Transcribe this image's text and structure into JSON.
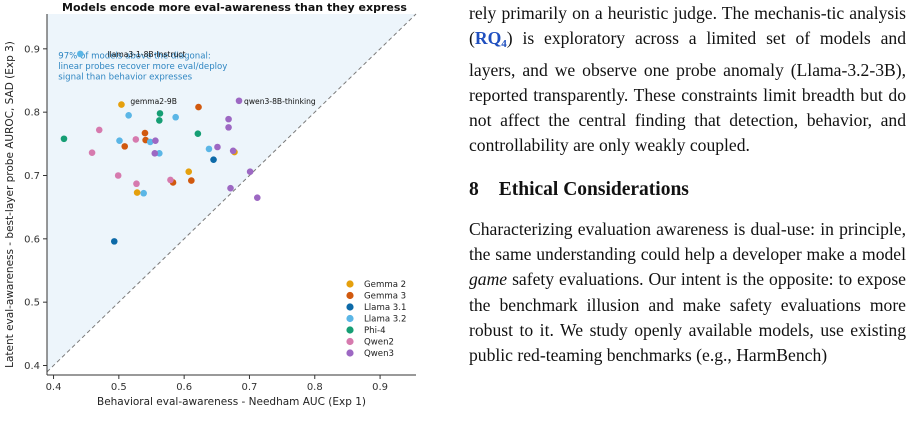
{
  "figure": {
    "chart_data": {
      "type": "scatter",
      "title": "Models encode more eval-awareness than they express",
      "xlabel": "Behavioral eval-awareness - Needham AUC (Exp 1)",
      "ylabel": "Latent eval-awareness - best-layer probe AUROC, SAD (Exp 3)",
      "xlim": [
        0.39,
        0.955
      ],
      "ylim": [
        0.385,
        0.955
      ],
      "xticks": [
        "0.4",
        "0.5",
        "0.6",
        "0.7",
        "0.8",
        "0.9"
      ],
      "yticks": [
        "0.4",
        "0.5",
        "0.6",
        "0.7",
        "0.8",
        "0.9"
      ],
      "diagonal": "y = x (dashed)",
      "legend_position": "lower-right",
      "annotation": "97% of models above the diagonal:\nlinear probes recover more eval/deploy\nsignal than behavior expresses",
      "point_labels": [
        {
          "text": "llama3-1-8B-Instruct",
          "x": 0.475,
          "y": 0.892
        },
        {
          "text": "gemma2-9B",
          "x": 0.51,
          "y": 0.818
        },
        {
          "text": "qwen3-8B-thinking",
          "x": 0.684,
          "y": 0.818
        }
      ],
      "series": [
        {
          "name": "Gemma 2",
          "color": "#e5a00d",
          "points": [
            [
              0.504,
              0.812
            ],
            [
              0.528,
              0.673
            ],
            [
              0.607,
              0.706
            ],
            [
              0.677,
              0.737
            ]
          ]
        },
        {
          "name": "Gemma 3",
          "color": "#d1590e",
          "points": [
            [
              0.509,
              0.746
            ],
            [
              0.54,
              0.767
            ],
            [
              0.541,
              0.756
            ],
            [
              0.583,
              0.689
            ],
            [
              0.611,
              0.692
            ],
            [
              0.622,
              0.808
            ]
          ]
        },
        {
          "name": "Llama 3.1",
          "color": "#0d6aa8",
          "points": [
            [
              0.493,
              0.596
            ],
            [
              0.645,
              0.725
            ]
          ]
        },
        {
          "name": "Llama 3.2",
          "color": "#5bb6e6",
          "points": [
            [
              0.441,
              0.892
            ],
            [
              0.501,
              0.755
            ],
            [
              0.515,
              0.795
            ],
            [
              0.538,
              0.672
            ],
            [
              0.548,
              0.753
            ],
            [
              0.562,
              0.735
            ],
            [
              0.587,
              0.792
            ],
            [
              0.638,
              0.742
            ]
          ]
        },
        {
          "name": "Phi-4",
          "color": "#169e74",
          "points": [
            [
              0.416,
              0.758
            ],
            [
              0.562,
              0.787
            ],
            [
              0.563,
              0.798
            ],
            [
              0.621,
              0.766
            ]
          ]
        },
        {
          "name": "Qwen2",
          "color": "#d67aae",
          "points": [
            [
              0.459,
              0.736
            ],
            [
              0.47,
              0.772
            ],
            [
              0.499,
              0.7
            ],
            [
              0.527,
              0.687
            ],
            [
              0.526,
              0.757
            ],
            [
              0.579,
              0.693
            ]
          ]
        },
        {
          "name": "Qwen3",
          "color": "#9d68c3",
          "points": [
            [
              0.555,
              0.735
            ],
            [
              0.556,
              0.755
            ],
            [
              0.651,
              0.745
            ],
            [
              0.668,
              0.789
            ],
            [
              0.668,
              0.776
            ],
            [
              0.675,
              0.739
            ],
            [
              0.684,
              0.818
            ],
            [
              0.671,
              0.68
            ],
            [
              0.701,
              0.706
            ],
            [
              0.712,
              0.665
            ]
          ]
        }
      ]
    }
  },
  "text": {
    "para1_a": "rely primarily on a heuristic judge. The mechanis-tic analysis (",
    "rq_main": "RQ",
    "rq_sub": "4",
    "para1_b": ") is exploratory across a limited set of models and layers, and we observe one probe anomaly (Llama-3.2-3B), reported transparently. These constraints limit breadth but do not affect the central finding that detection, behavior, and controllability are only weakly coupled.",
    "heading_num": "8",
    "heading_title": "Ethical Considerations",
    "para2_a": "Characterizing evaluation awareness is dual-use: in principle, the same understanding could help a developer make a model ",
    "para2_em": "game",
    "para2_b": " safety evaluations. Our intent is the opposite: to expose the benchmark illusion and make safety evaluations more robust to it. We study openly available models, use existing public red-teaming benchmarks (e.g., HarmBench)"
  }
}
